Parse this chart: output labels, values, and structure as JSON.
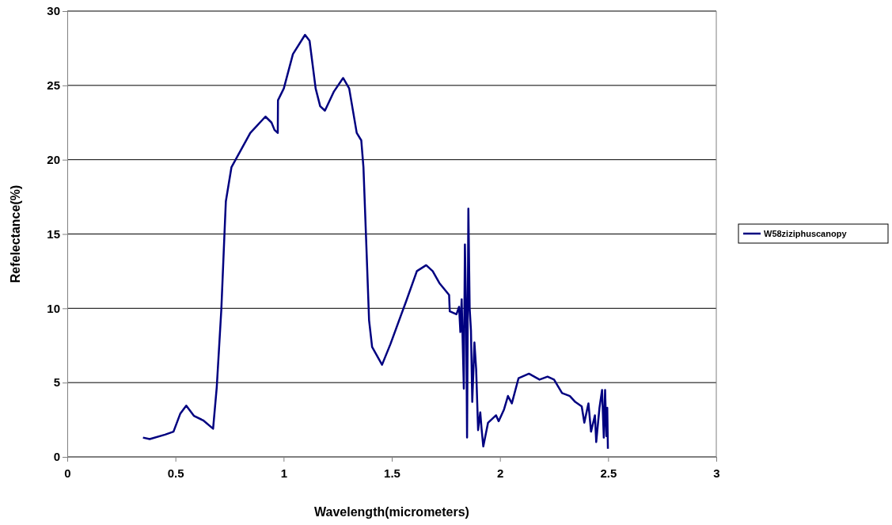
{
  "chart_data": {
    "type": "line",
    "xlabel": "Wavelength(micrometers)",
    "ylabel": "Refelectance(%)",
    "xlim": [
      0,
      3
    ],
    "xticks": [
      0,
      0.5,
      1,
      1.5,
      2,
      2.5,
      3
    ],
    "ylim": [
      0,
      30
    ],
    "yticks": [
      0,
      5,
      10,
      15,
      20,
      25,
      30
    ],
    "grid": "y",
    "legend": "right",
    "marker": "none",
    "line_style": "solid",
    "series": [
      {
        "name": "W58ziziphuscanopy",
        "color": "#000080",
        "x": [
          0.35,
          0.381,
          0.452,
          0.491,
          0.522,
          0.55,
          0.585,
          0.628,
          0.674,
          0.691,
          0.712,
          0.726,
          0.733,
          0.759,
          0.846,
          0.916,
          0.944,
          0.958,
          0.973,
          0.974,
          1.001,
          1.043,
          1.099,
          1.12,
          1.148,
          1.169,
          1.191,
          1.233,
          1.275,
          1.303,
          1.338,
          1.359,
          1.369,
          1.381,
          1.395,
          1.409,
          1.455,
          1.494,
          1.567,
          1.616,
          1.659,
          1.689,
          1.72,
          1.765,
          1.768,
          1.799,
          1.811,
          1.817,
          1.823,
          1.833,
          1.838,
          1.844,
          1.848,
          1.854,
          1.86,
          1.866,
          1.872,
          1.882,
          1.89,
          1.899,
          1.909,
          1.915,
          1.923,
          1.945,
          1.982,
          1.994,
          2.019,
          2.037,
          2.055,
          2.086,
          2.134,
          2.183,
          2.22,
          2.25,
          2.287,
          2.323,
          2.348,
          2.378,
          2.39,
          2.409,
          2.421,
          2.439,
          2.445,
          2.46,
          2.472,
          2.48,
          2.486,
          2.492,
          2.496,
          2.499
        ],
        "values": [
          1.3,
          1.2,
          1.5,
          1.7,
          2.9,
          3.45,
          2.77,
          2.46,
          1.9,
          4.7,
          9.9,
          14.8,
          17.2,
          19.5,
          21.8,
          22.9,
          22.5,
          22.0,
          21.8,
          24.0,
          24.8,
          27.1,
          28.4,
          28.0,
          24.8,
          23.6,
          23.3,
          24.6,
          25.5,
          24.8,
          21.8,
          21.3,
          19.5,
          14.8,
          9.2,
          7.4,
          6.2,
          7.6,
          10.5,
          12.5,
          12.9,
          12.5,
          11.7,
          10.9,
          9.8,
          9.6,
          10.1,
          8.4,
          10.6,
          4.6,
          14.3,
          9.4,
          1.3,
          16.7,
          10.0,
          8.5,
          3.7,
          7.7,
          5.9,
          1.8,
          3.0,
          1.9,
          0.7,
          2.3,
          2.8,
          2.4,
          3.2,
          4.1,
          3.6,
          5.3,
          5.6,
          5.2,
          5.4,
          5.2,
          4.3,
          4.1,
          3.7,
          3.4,
          2.3,
          3.6,
          1.7,
          2.8,
          1.0,
          3.3,
          4.5,
          1.3,
          4.5,
          1.4,
          3.3,
          0.55
        ]
      }
    ]
  }
}
